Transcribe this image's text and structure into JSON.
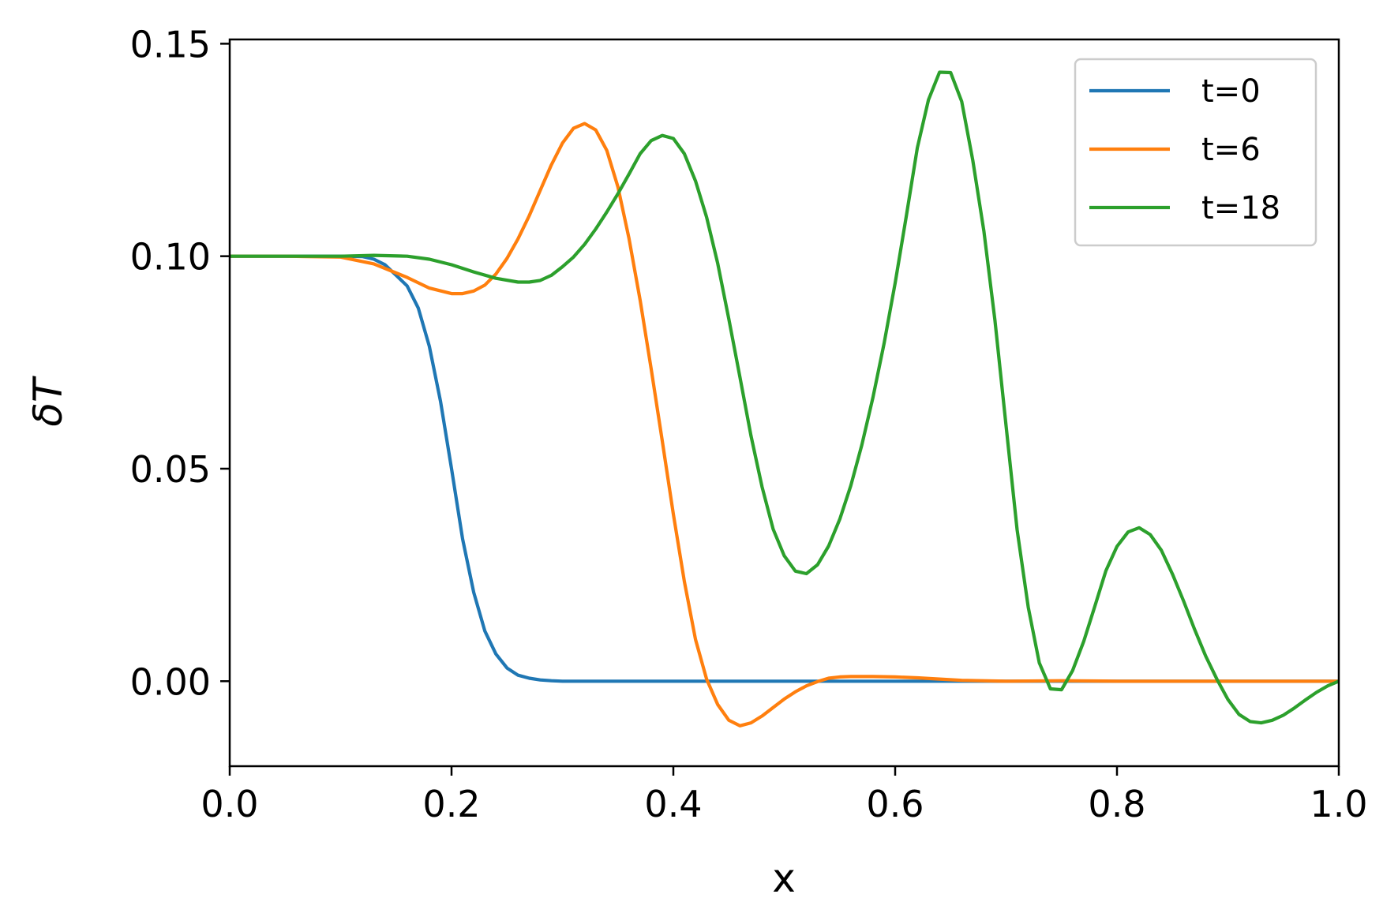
{
  "chart_data": {
    "type": "line",
    "xlabel": "x",
    "ylabel": "δT",
    "xlim": [
      0.0,
      1.0
    ],
    "ylim": [
      -0.02,
      0.151
    ],
    "xticks": [
      "0.0",
      "0.2",
      "0.4",
      "0.6",
      "0.8",
      "1.0"
    ],
    "xtick_values": [
      0.0,
      0.2,
      0.4,
      0.6,
      0.8,
      1.0
    ],
    "yticks": [
      "0.00",
      "0.05",
      "0.10",
      "0.15"
    ],
    "ytick_values": [
      0.0,
      0.05,
      0.1,
      0.15
    ],
    "grid": false,
    "legend_position": "top-right",
    "series": [
      {
        "name": "t=0",
        "color": "#1f77b4",
        "x": [
          0.0,
          0.05,
          0.1,
          0.12,
          0.13,
          0.14,
          0.15,
          0.16,
          0.17,
          0.18,
          0.19,
          0.2,
          0.21,
          0.22,
          0.23,
          0.24,
          0.25,
          0.26,
          0.27,
          0.28,
          0.29,
          0.3,
          0.35,
          0.4,
          0.5,
          0.6,
          0.7,
          0.8,
          0.9,
          1.0
        ],
        "y": [
          0.1,
          0.1,
          0.1,
          0.0999,
          0.0993,
          0.098,
          0.0955,
          0.093,
          0.0878,
          0.0788,
          0.0659,
          0.05,
          0.0335,
          0.0209,
          0.0118,
          0.0064,
          0.0031,
          0.0014,
          0.0007,
          0.0003,
          0.0001,
          0.0,
          0.0,
          0.0,
          0.0,
          0.0,
          0.0,
          0.0,
          0.0,
          0.0
        ]
      },
      {
        "name": "t=6",
        "color": "#ff7f0e",
        "x": [
          0.0,
          0.05,
          0.1,
          0.13,
          0.16,
          0.18,
          0.2,
          0.21,
          0.22,
          0.23,
          0.24,
          0.25,
          0.26,
          0.27,
          0.28,
          0.29,
          0.3,
          0.31,
          0.32,
          0.33,
          0.34,
          0.35,
          0.36,
          0.37,
          0.38,
          0.39,
          0.4,
          0.41,
          0.42,
          0.43,
          0.44,
          0.45,
          0.46,
          0.47,
          0.48,
          0.49,
          0.5,
          0.51,
          0.52,
          0.53,
          0.54,
          0.55,
          0.56,
          0.58,
          0.6,
          0.62,
          0.64,
          0.66,
          0.7,
          0.75,
          0.8,
          0.85,
          0.9,
          1.0
        ],
        "y": [
          0.1,
          0.1,
          0.0998,
          0.0982,
          0.095,
          0.0925,
          0.0912,
          0.0912,
          0.0918,
          0.0932,
          0.0958,
          0.0995,
          0.1041,
          0.1095,
          0.1155,
          0.1215,
          0.1266,
          0.1301,
          0.1312,
          0.1297,
          0.1249,
          0.1163,
          0.1042,
          0.0897,
          0.0735,
          0.0565,
          0.0393,
          0.0234,
          0.0098,
          0.0005,
          -0.0055,
          -0.0092,
          -0.0105,
          -0.0098,
          -0.0082,
          -0.0062,
          -0.0042,
          -0.0025,
          -0.0011,
          -0.0001,
          0.0007,
          0.001,
          0.0011,
          0.0011,
          0.001,
          0.0008,
          0.0005,
          0.0002,
          0.0,
          0.0001,
          0.0,
          0.0,
          0.0,
          0.0
        ]
      },
      {
        "name": "t=18",
        "color": "#2ca02c",
        "x": [
          0.0,
          0.05,
          0.1,
          0.13,
          0.16,
          0.18,
          0.2,
          0.22,
          0.24,
          0.26,
          0.27,
          0.28,
          0.29,
          0.3,
          0.31,
          0.32,
          0.33,
          0.34,
          0.35,
          0.36,
          0.37,
          0.38,
          0.39,
          0.4,
          0.41,
          0.42,
          0.43,
          0.44,
          0.45,
          0.46,
          0.47,
          0.48,
          0.49,
          0.5,
          0.51,
          0.52,
          0.53,
          0.54,
          0.55,
          0.56,
          0.57,
          0.58,
          0.59,
          0.6,
          0.61,
          0.62,
          0.63,
          0.64,
          0.65,
          0.66,
          0.67,
          0.68,
          0.69,
          0.7,
          0.71,
          0.72,
          0.73,
          0.74,
          0.75,
          0.76,
          0.77,
          0.78,
          0.79,
          0.8,
          0.81,
          0.82,
          0.83,
          0.84,
          0.85,
          0.86,
          0.87,
          0.88,
          0.89,
          0.9,
          0.91,
          0.92,
          0.93,
          0.94,
          0.95,
          0.96,
          0.97,
          0.98,
          0.99,
          1.0
        ],
        "y": [
          0.1,
          0.1,
          0.1,
          0.1002,
          0.1,
          0.0993,
          0.098,
          0.0963,
          0.0948,
          0.0939,
          0.0939,
          0.0943,
          0.0955,
          0.0975,
          0.0998,
          0.1028,
          0.1064,
          0.1104,
          0.1147,
          0.1193,
          0.1241,
          0.1272,
          0.1284,
          0.1277,
          0.1241,
          0.1177,
          0.1092,
          0.0983,
          0.0852,
          0.0716,
          0.0578,
          0.0457,
          0.0358,
          0.0295,
          0.0259,
          0.0253,
          0.0274,
          0.0318,
          0.0381,
          0.046,
          0.0556,
          0.0668,
          0.0794,
          0.0937,
          0.1093,
          0.1255,
          0.1368,
          0.1433,
          0.1432,
          0.1364,
          0.1226,
          0.1059,
          0.0849,
          0.0601,
          0.0356,
          0.0174,
          0.0043,
          -0.0018,
          -0.002,
          0.0025,
          0.0094,
          0.0176,
          0.026,
          0.0317,
          0.0351,
          0.0361,
          0.0345,
          0.0308,
          0.0252,
          0.0189,
          0.0122,
          0.0059,
          0.0005,
          -0.0043,
          -0.0078,
          -0.0095,
          -0.0098,
          -0.0092,
          -0.008,
          -0.0063,
          -0.0044,
          -0.0026,
          -0.0011,
          0.0
        ]
      }
    ]
  }
}
